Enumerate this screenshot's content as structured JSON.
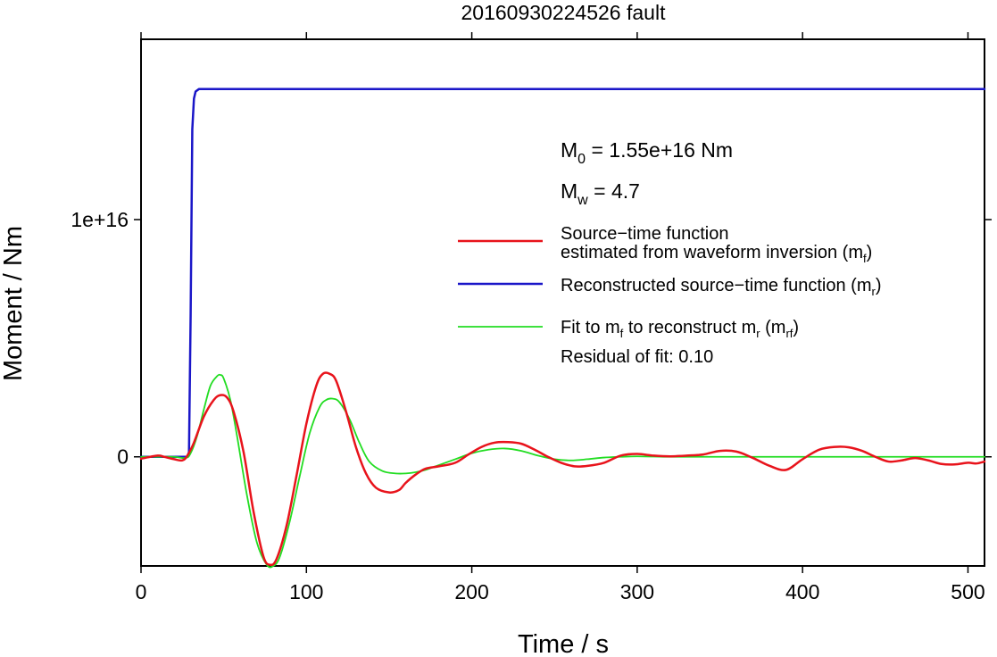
{
  "chart_data": {
    "type": "line",
    "title": "20160930224526 fault",
    "xlabel": "Time / s",
    "ylabel": "Moment / Nm",
    "xlim": [
      0,
      510
    ],
    "ylim": [
      -4600000000000000.0,
      1.76e+16
    ],
    "x_ticks": [
      {
        "value": 0,
        "label": "0"
      },
      {
        "value": 100,
        "label": "100"
      },
      {
        "value": 200,
        "label": "200"
      },
      {
        "value": 300,
        "label": "300"
      },
      {
        "value": 400,
        "label": "400"
      },
      {
        "value": 500,
        "label": "500"
      }
    ],
    "y_ticks": [
      {
        "value": 0,
        "label": "0"
      },
      {
        "value": 1e+16,
        "label": "1e+16"
      }
    ],
    "grid": false,
    "legend_position": "right",
    "annotations": {
      "m0_text": "M",
      "m0_sub": "0",
      "m0_rest": " = 1.55e+16 Nm",
      "mw_text": "M",
      "mw_sub": "w",
      "mw_rest": " = 4.7",
      "residual": "Residual of fit: 0.10"
    },
    "series": [
      {
        "name": "Source−time function estimated from waveform inversion (mf)",
        "legend_line1": "Source−time function",
        "legend_line2_main": "estimated from waveform inversion (m",
        "legend_line2_sub": "f",
        "legend_line2_end": ")",
        "color": "#e8131b",
        "width": 2.5,
        "x": [
          0,
          10,
          14,
          20,
          25,
          28,
          32,
          38,
          44,
          48,
          52,
          56,
          62,
          68,
          74,
          78,
          82,
          88,
          94,
          100,
          106,
          110,
          114,
          118,
          124,
          130,
          136,
          142,
          150,
          156,
          160,
          166,
          172,
          180,
          190,
          198,
          206,
          214,
          222,
          230,
          238,
          246,
          254,
          262,
          270,
          280,
          290,
          300,
          310,
          320,
          330,
          340,
          350,
          360,
          370,
          380,
          390,
          400,
          410,
          420,
          428,
          436,
          444,
          452,
          460,
          468,
          476,
          484,
          492,
          500,
          505,
          510
        ],
        "y": [
          -80000000000000.0,
          50000000000000.0,
          0.0,
          -100000000000000.0,
          -150000000000000.0,
          50000000000000.0,
          600000000000000.0,
          1700000000000000.0,
          2400000000000000.0,
          2600000000000000.0,
          2500000000000000.0,
          1900000000000000.0,
          200000000000000.0,
          -2300000000000000.0,
          -4200000000000000.0,
          -4550000000000000.0,
          -4300000000000000.0,
          -2900000000000000.0,
          -800000000000000.0,
          1400000000000000.0,
          3000000000000000.0,
          3500000000000000.0,
          3500000000000000.0,
          3200000000000000.0,
          1900000000000000.0,
          400000000000000.0,
          -700000000000000.0,
          -1300000000000000.0,
          -1500000000000000.0,
          -1400000000000000.0,
          -1100000000000000.0,
          -750000000000000.0,
          -500000000000000.0,
          -400000000000000.0,
          -250000000000000.0,
          100000000000000.0,
          420000000000000.0,
          600000000000000.0,
          620000000000000.0,
          550000000000000.0,
          300000000000000.0,
          0.0,
          -250000000000000.0,
          -400000000000000.0,
          -380000000000000.0,
          -250000000000000.0,
          50000000000000.0,
          120000000000000.0,
          50000000000000.0,
          20000000000000.0,
          50000000000000.0,
          100000000000000.0,
          250000000000000.0,
          220000000000000.0,
          -50000000000000.0,
          -380000000000000.0,
          -550000000000000.0,
          -100000000000000.0,
          300000000000000.0,
          420000000000000.0,
          400000000000000.0,
          250000000000000.0,
          0.0,
          -200000000000000.0,
          -150000000000000.0,
          -50000000000000.0,
          -150000000000000.0,
          -300000000000000.0,
          -320000000000000.0,
          -250000000000000.0,
          -280000000000000.0,
          -200000000000000.0
        ]
      },
      {
        "name": "Reconstructed source−time function (mr)",
        "legend_main": "Reconstructed source−time function (m",
        "legend_sub": "r",
        "legend_end": ")",
        "color": "#1a16c8",
        "width": 2.5,
        "x": [
          0,
          10,
          20,
          27,
          28,
          29,
          30,
          31,
          32,
          33,
          35,
          40,
          60,
          100,
          200,
          300,
          400,
          510
        ],
        "y": [
          0,
          0,
          0,
          0,
          0,
          200000000000000.0,
          6000000000000000.0,
          1.38e+16,
          1.51e+16,
          1.54e+16,
          1.55e+16,
          1.55e+16,
          1.55e+16,
          1.55e+16,
          1.55e+16,
          1.55e+16,
          1.55e+16,
          1.55e+16
        ]
      },
      {
        "name": "Fit to mf to reconstruct mr (mrf)",
        "legend_a": "Fit to m",
        "legend_a_sub": "f",
        "legend_b": " to reconstruct m",
        "legend_b_sub": "r",
        "legend_c": " (m",
        "legend_c_sub": "rf",
        "legend_d": ")",
        "color": "#22dd22",
        "width": 1.8,
        "x": [
          0,
          10,
          20,
          27,
          30,
          34,
          38,
          42,
          46,
          48,
          50,
          54,
          58,
          64,
          70,
          76,
          80,
          84,
          90,
          96,
          102,
          108,
          112,
          116,
          120,
          126,
          132,
          138,
          146,
          154,
          160,
          166,
          172,
          180,
          190,
          200,
          210,
          220,
          230,
          240,
          250,
          260,
          270,
          280,
          290,
          300,
          320,
          340,
          360,
          400,
          450,
          510
        ],
        "y": [
          0,
          0,
          0,
          -50000000000000.0,
          150000000000000.0,
          900000000000000.0,
          2000000000000000.0,
          3000000000000000.0,
          3400000000000000.0,
          3450000000000000.0,
          3300000000000000.0,
          2400000000000000.0,
          900000000000000.0,
          -1600000000000000.0,
          -3600000000000000.0,
          -4550000000000000.0,
          -4600000000000000.0,
          -4200000000000000.0,
          -2700000000000000.0,
          -800000000000000.0,
          1000000000000000.0,
          2100000000000000.0,
          2400000000000000.0,
          2450000000000000.0,
          2300000000000000.0,
          1600000000000000.0,
          600000000000000.0,
          -200000000000000.0,
          -600000000000000.0,
          -700000000000000.0,
          -700000000000000.0,
          -650000000000000.0,
          -550000000000000.0,
          -350000000000000.0,
          -100000000000000.0,
          150000000000000.0,
          300000000000000.0,
          350000000000000.0,
          250000000000000.0,
          50000000000000.0,
          -100000000000000.0,
          -150000000000000.0,
          -100000000000000.0,
          -30000000000000.0,
          0.0,
          20000000000000.0,
          0.0,
          0.0,
          0.0,
          0.0,
          0.0,
          0.0
        ]
      }
    ]
  }
}
